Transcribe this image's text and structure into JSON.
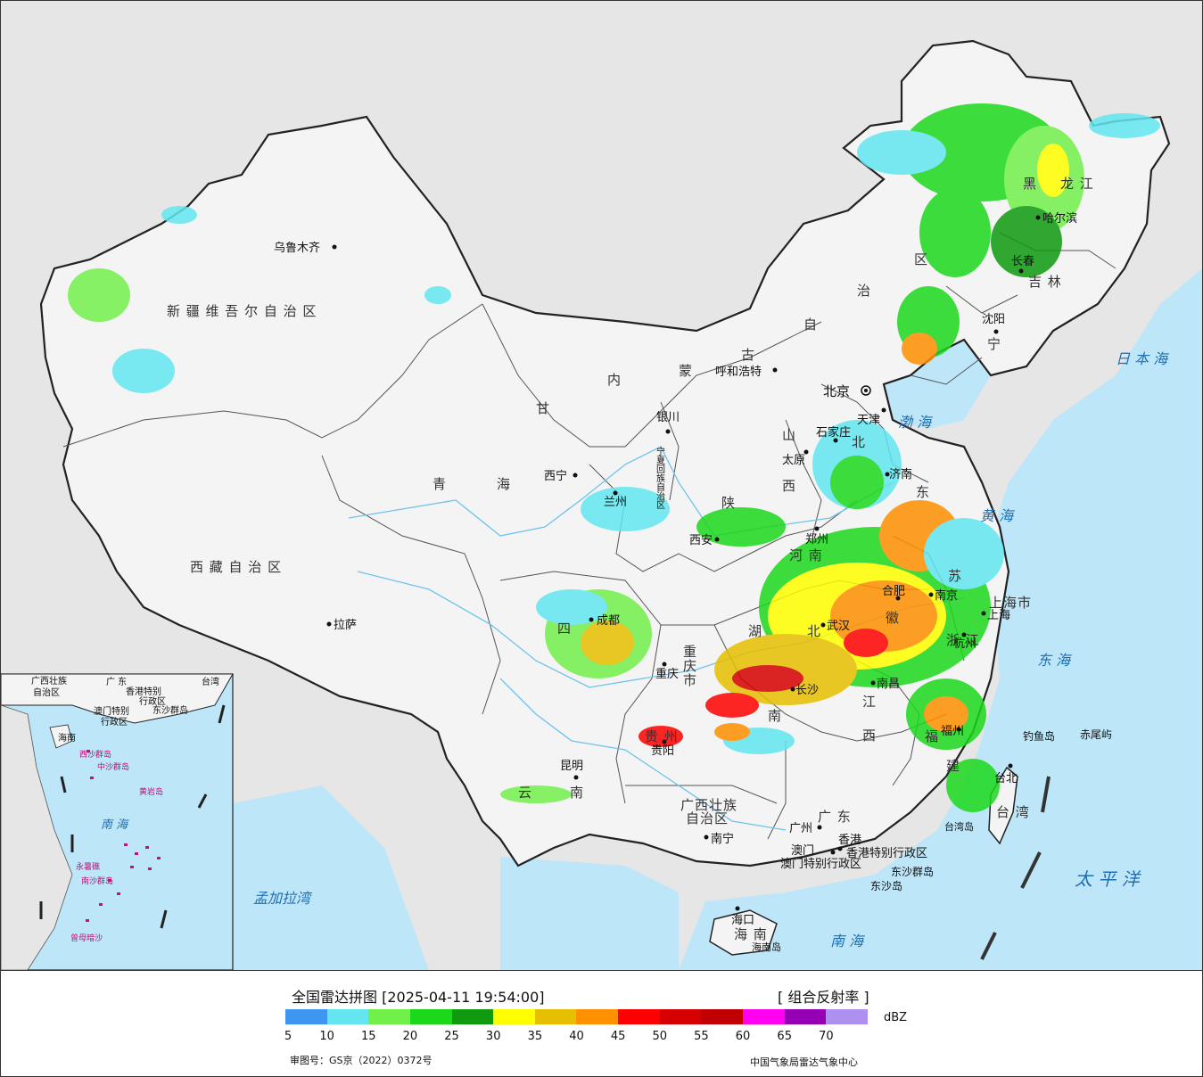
{
  "map": {
    "cities": [
      {
        "name": "乌鲁木齐",
        "x": 0
      },
      {
        "name": "拉萨"
      },
      {
        "name": "西宁"
      },
      {
        "name": "兰州"
      },
      {
        "name": "银川"
      },
      {
        "name": "呼和浩特"
      },
      {
        "name": "北京"
      },
      {
        "name": "天津"
      },
      {
        "name": "石家庄"
      },
      {
        "name": "太原"
      },
      {
        "name": "济南"
      },
      {
        "name": "郑州"
      },
      {
        "name": "西安"
      },
      {
        "name": "成都"
      },
      {
        "name": "重庆"
      },
      {
        "name": "贵阳"
      },
      {
        "name": "昆明"
      },
      {
        "name": "南宁"
      },
      {
        "name": "广州"
      },
      {
        "name": "香港"
      },
      {
        "name": "澳门"
      },
      {
        "name": "海口"
      },
      {
        "name": "长沙"
      },
      {
        "name": "南昌"
      },
      {
        "name": "福州"
      },
      {
        "name": "台北"
      },
      {
        "name": "杭州"
      },
      {
        "name": "上海"
      },
      {
        "name": "南京"
      },
      {
        "name": "合肥"
      },
      {
        "name": "武汉"
      },
      {
        "name": "沈阳"
      },
      {
        "name": "长春"
      },
      {
        "name": "哈尔滨"
      }
    ],
    "regions": {
      "xinjiang": "新 疆 维 吾 尔 自 治 区",
      "xizang": "西 藏 自 治 区",
      "qinghai_a": "青",
      "qinghai_b": "海",
      "gansu": "甘",
      "neimeng": [
        "内",
        "蒙",
        "古",
        "自",
        "治",
        "区"
      ],
      "sichuan": "四",
      "yunnan_a": "云",
      "yunnan_b": "南",
      "guangxi_a": "广西壮族",
      "guangxi_b": "自治区",
      "guangdong": "广  东",
      "hainan": "海  南",
      "hunan_a": "湖",
      "hunan_b": "南",
      "jiangxi_a": "江",
      "jiangxi_b": "西",
      "fujian_a": "福",
      "fujian_b": "建",
      "taiwan": "台 湾",
      "zhejiang": "浙 江",
      "jiangsu": "苏",
      "anhui": "徽",
      "shandong": "东",
      "henan": "河  南",
      "shanxi_a": "山",
      "shanxi_b": "西",
      "shaanxi": "陕",
      "hebei": "北",
      "liaoning": "宁",
      "jilin": "吉  林",
      "heilongjiang_a": "黑",
      "heilongjiang_b": "龙  江",
      "ningxia": "宁夏回族自治区",
      "hubei": "北",
      "guizhou": "贵  州",
      "chongqing": "重庆市",
      "shanghai": "上海市",
      "hk_sar": "香港特别行政区",
      "macau_sar": "澳门特别行政区",
      "dongsha_a": "东沙群岛",
      "dongsha_b": "东沙岛",
      "diaoyu": "钓鱼岛",
      "chiwei": "赤尾屿",
      "taiwan_island": "台湾岛",
      "hainan_island": "海南岛"
    },
    "seas": {
      "japan_sea": "日 本 海",
      "bohai": "渤 海",
      "yellow_sea": "黄  海",
      "east_sea": "东  海",
      "pacific": "太  平  洋",
      "south_sea": "南    海",
      "bengal": "孟加拉湾"
    },
    "inset": {
      "labels": [
        "广西壮族",
        "自治区",
        "广  东",
        "香港特别",
        "行政区",
        "澳门特别",
        "行政区",
        "台湾",
        "东沙群岛",
        "海南",
        "西沙群岛",
        "中沙群岛",
        "黄岩岛",
        "南  海",
        "永暑礁",
        "南沙群岛",
        "曾母暗沙"
      ]
    }
  },
  "legend": {
    "title": "全国雷达拼图 [2025-04-11 19:54:00]",
    "product": "[ 组合反射率 ]",
    "unit": "dBZ",
    "colors": [
      "#3d97f0",
      "#63e6f0",
      "#72f04a",
      "#1bd81b",
      "#0f9a0f",
      "#ffff00",
      "#e6c000",
      "#ff9000",
      "#ff0000",
      "#d60000",
      "#c00000",
      "#ff00f0",
      "#9600b4",
      "#ad90f0"
    ],
    "ticks": [
      "5",
      "10",
      "15",
      "20",
      "25",
      "30",
      "35",
      "40",
      "45",
      "50",
      "55",
      "60",
      "65",
      "70"
    ],
    "approval": "审图号：GS京（2022）0372号",
    "agency": "中国气象局雷达气象中心"
  }
}
